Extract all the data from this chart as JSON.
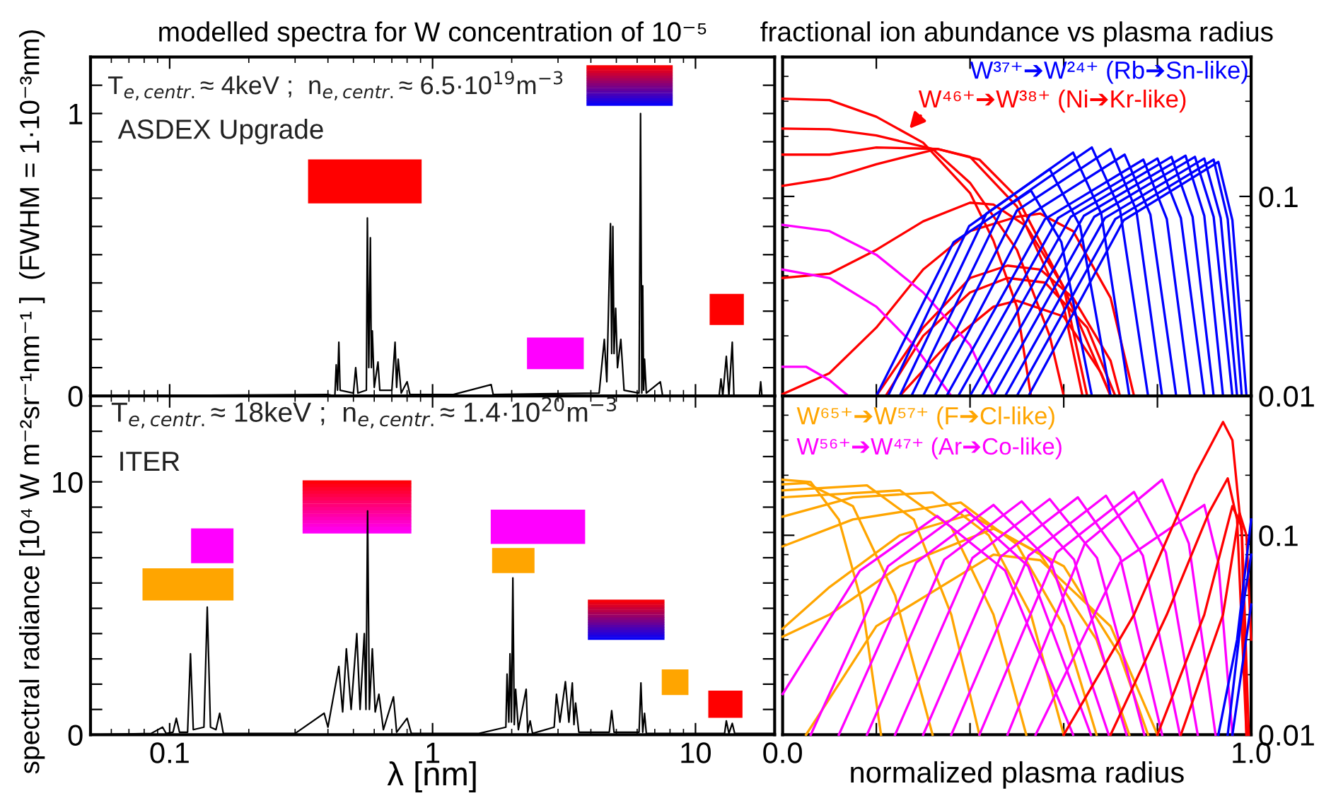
{
  "chart_data": [
    {
      "type": "line",
      "title": "modelled spectra for W concentration of 10⁻⁵",
      "log": "x",
      "tick_labels": "y",
      "xlim": [
        0.05,
        20
      ],
      "xticks": [
        0.1,
        1,
        10
      ],
      "ylim": [
        0,
        1.2
      ],
      "yticks": [
        0,
        {
          "value": 0.1,
          "label": null
        },
        {
          "value": 0.2,
          "label": null
        },
        {
          "value": 0.3,
          "label": null
        },
        {
          "value": 0.4,
          "label": null
        },
        {
          "value": 0.5,
          "label": null
        },
        {
          "value": 0.6,
          "label": null
        },
        {
          "value": 0.7,
          "label": null
        },
        {
          "value": 0.8,
          "label": null
        },
        {
          "value": 0.9,
          "label": null
        },
        1,
        {
          "value": 1.1,
          "label": null
        }
      ],
      "annotations": [
        "T$_{e,centr.}$≈ 4keV ;  n$_{e,centr.}$≈ 6.5·10$^{19}$m$^{−3}$",
        "ASDEX Upgrade"
      ],
      "series": [
        {
          "color": "#000000",
          "x": [
            0.05,
            0.4,
            0.425,
            0.43,
            0.435,
            0.44,
            0.445,
            0.5,
            0.51,
            0.52,
            0.56,
            0.565,
            0.572,
            0.58,
            0.585,
            0.59,
            0.6,
            0.62,
            0.63,
            0.7,
            0.72,
            0.73,
            0.74,
            0.76,
            0.8,
            0.82,
            1.2,
            1.67,
            1.7,
            4.3,
            4.5,
            4.6,
            4.75,
            4.8,
            4.85,
            4.9,
            4.97,
            5.05,
            5.2,
            5.35,
            6.1,
            6.18,
            6.25,
            6.3,
            6.35,
            6.4,
            6.5,
            7.35,
            7.5,
            12.3,
            12.5,
            12.7,
            13.1,
            13.4,
            13.8,
            14.0,
            17.5,
            17.7,
            17.9,
            20
          ],
          "values": [
            0,
            0.005,
            0,
            0.11,
            0.02,
            0.19,
            0.02,
            0.01,
            0.1,
            0.01,
            0.02,
            0.63,
            0.1,
            0.56,
            0.1,
            0.23,
            0.03,
            0.12,
            0.02,
            0.02,
            0.19,
            0.03,
            0.13,
            0.01,
            0.05,
            0.005,
            0.005,
            0.04,
            0.005,
            0.01,
            0.2,
            0.05,
            0.61,
            0.15,
            0.6,
            0.15,
            0.31,
            0.1,
            0.2,
            0.02,
            0.01,
            1.0,
            0.01,
            0.39,
            0.02,
            0.13,
            0.01,
            0.05,
            0,
            0,
            0.06,
            0,
            0.14,
            0,
            0.19,
            0,
            0,
            0.05,
            0,
            0
          ]
        }
      ]
    },
    {
      "type": "line",
      "title": "fractional ion abundance vs plasma radius",
      "log": "y",
      "tick_labels": "y",
      "xlim": [
        0,
        1
      ],
      "xticks": [
        {
          "value": 0,
          "label": null
        },
        {
          "value": 0.2,
          "label": null
        },
        {
          "value": 0.4,
          "label": null
        },
        {
          "value": 0.6,
          "label": null
        },
        {
          "value": 0.8,
          "label": null
        },
        {
          "value": 1,
          "label": null
        }
      ],
      "ylim": [
        0.01,
        0.5
      ],
      "yticks": [
        0.01,
        0.1
      ],
      "annotations": [
        "W⁴⁶⁺➔W³⁸⁺ (Ni➔Kr-like)",
        "W³⁷⁺➔W²⁴⁺ (Rb➔Sn-like)"
      ],
      "series": [
        {
          "color": "#ff0000",
          "x": [
            0,
            0.1,
            0.2,
            0.3,
            0.4,
            0.45,
            0.5,
            0.53
          ],
          "values": [
            0.309,
            0.304,
            0.251,
            0.186,
            0.104,
            0.06,
            0.028,
            0.01
          ]
        },
        {
          "color": "#ff0000",
          "x": [
            0,
            0.1,
            0.2,
            0.32,
            0.4,
            0.5,
            0.57,
            0.6
          ],
          "values": [
            0.219,
            0.217,
            0.202,
            0.173,
            0.117,
            0.054,
            0.02,
            0.01
          ]
        },
        {
          "color": "#ff0000",
          "x": [
            0,
            0.1,
            0.2,
            0.33,
            0.4,
            0.5,
            0.6,
            0.64
          ],
          "values": [
            0.162,
            0.162,
            0.176,
            0.173,
            0.158,
            0.089,
            0.028,
            0.01
          ]
        },
        {
          "color": "#ff0000",
          "x": [
            0,
            0.1,
            0.2,
            0.33,
            0.42,
            0.5,
            0.6,
            0.65
          ],
          "values": [
            0.113,
            0.123,
            0.145,
            0.173,
            0.153,
            0.099,
            0.035,
            0.01
          ]
        },
        {
          "color": "#ff0000",
          "x": [
            0,
            0.1,
            0.2,
            0.3,
            0.4,
            0.45,
            0.52,
            0.6,
            0.7
          ],
          "values": [
            0.039,
            0.041,
            0.054,
            0.075,
            0.093,
            0.091,
            0.071,
            0.035,
            0.01
          ]
        },
        {
          "color": "#ff0000",
          "x": [
            0,
            0.1,
            0.2,
            0.3,
            0.4,
            0.5,
            0.55,
            0.62,
            0.7,
            0.75
          ],
          "values": [
            0.0102,
            0.013,
            0.022,
            0.043,
            0.067,
            0.079,
            0.082,
            0.067,
            0.031,
            0.01
          ]
        },
        {
          "color": "#ff0000",
          "x": [
            0.2,
            0.3,
            0.4,
            0.48,
            0.55,
            0.62,
            0.7,
            0.72
          ],
          "values": [
            0.01,
            0.022,
            0.039,
            0.045,
            0.043,
            0.031,
            0.015,
            0.01
          ]
        },
        {
          "color": "#ff0000",
          "x": [
            0.22,
            0.3,
            0.4,
            0.48,
            0.56,
            0.65,
            0.71
          ],
          "values": [
            0.01,
            0.02,
            0.033,
            0.039,
            0.037,
            0.022,
            0.01
          ]
        },
        {
          "color": "#ff0000",
          "x": [
            0.25,
            0.35,
            0.45,
            0.5,
            0.6,
            0.68,
            0.7
          ],
          "values": [
            0.01,
            0.018,
            0.028,
            0.03,
            0.025,
            0.013,
            0.01
          ]
        },
        {
          "color": "#ff00ff",
          "x": [
            0,
            0.1,
            0.2,
            0.3,
            0.4,
            0.45
          ],
          "values": [
            0.072,
            0.067,
            0.051,
            0.033,
            0.018,
            0.01
          ]
        },
        {
          "color": "#ff00ff",
          "x": [
            0,
            0.1,
            0.2,
            0.28,
            0.36
          ],
          "values": [
            0.043,
            0.039,
            0.028,
            0.018,
            0.01
          ]
        },
        {
          "color": "#ff00ff",
          "x": [
            0,
            0.05,
            0.1,
            0.14
          ],
          "values": [
            0.014,
            0.014,
            0.012,
            0.01
          ]
        },
        {
          "color": "#0000ff",
          "x": [
            0.2,
            0.365,
            0.53,
            0.595,
            0.66
          ],
          "values": [
            0.01,
            0.059,
            0.107,
            0.059,
            0.01
          ]
        },
        {
          "color": "#0000ff",
          "x": [
            0.225,
            0.398,
            0.57,
            0.635,
            0.7
          ],
          "values": [
            0.01,
            0.071,
            0.137,
            0.071,
            0.01
          ]
        },
        {
          "color": "#0000ff",
          "x": [
            0.25,
            0.435,
            0.62,
            0.68,
            0.74
          ],
          "values": [
            0.01,
            0.082,
            0.166,
            0.082,
            0.01
          ]
        },
        {
          "color": "#0000ff",
          "x": [
            0.275,
            0.468,
            0.66,
            0.72,
            0.78
          ],
          "values": [
            0.01,
            0.086,
            0.176,
            0.086,
            0.01
          ]
        },
        {
          "color": "#0000ff",
          "x": [
            0.3,
            0.5,
            0.7,
            0.755,
            0.81
          ],
          "values": [
            0.01,
            0.085,
            0.173,
            0.085,
            0.01
          ]
        },
        {
          "color": "#0000ff",
          "x": [
            0.325,
            0.528,
            0.73,
            0.785,
            0.84
          ],
          "values": [
            0.01,
            0.081,
            0.162,
            0.081,
            0.01
          ]
        },
        {
          "color": "#0000ff",
          "x": [
            0.35,
            0.56,
            0.77,
            0.82,
            0.87
          ],
          "values": [
            0.01,
            0.077,
            0.153,
            0.077,
            0.01
          ]
        },
        {
          "color": "#0000ff",
          "x": [
            0.375,
            0.588,
            0.8,
            0.85,
            0.9
          ],
          "values": [
            0.01,
            0.078,
            0.155,
            0.078,
            0.01
          ]
        },
        {
          "color": "#0000ff",
          "x": [
            0.4,
            0.615,
            0.83,
            0.875,
            0.92
          ],
          "values": [
            0.01,
            0.079,
            0.158,
            0.079,
            0.01
          ]
        },
        {
          "color": "#0000ff",
          "x": [
            0.425,
            0.643,
            0.86,
            0.9,
            0.94
          ],
          "values": [
            0.01,
            0.08,
            0.16,
            0.08,
            0.01
          ]
        },
        {
          "color": "#0000ff",
          "x": [
            0.45,
            0.665,
            0.88,
            0.92,
            0.96
          ],
          "values": [
            0.01,
            0.079,
            0.158,
            0.079,
            0.01
          ]
        },
        {
          "color": "#0000ff",
          "x": [
            0.475,
            0.688,
            0.9,
            0.935,
            0.97
          ],
          "values": [
            0.01,
            0.078,
            0.155,
            0.078,
            0.01
          ]
        },
        {
          "color": "#0000ff",
          "x": [
            0.5,
            0.71,
            0.92,
            0.95,
            0.98
          ],
          "values": [
            0.01,
            0.077,
            0.153,
            0.077,
            0.01
          ]
        },
        {
          "color": "#0000ff",
          "x": [
            0.525,
            0.728,
            0.93,
            0.96,
            0.99
          ],
          "values": [
            0.01,
            0.076,
            0.149,
            0.076,
            0.01
          ]
        }
      ]
    },
    {
      "type": "line",
      "log": "x",
      "xlabel": "λ [nm]",
      "ylabel": "spectral radiance [10⁴ W m⁻²sr⁻¹nm⁻¹ ]  (FWHM = 1·10⁻³nm)",
      "xlim": [
        0.05,
        20
      ],
      "xticks": [
        0.1,
        1,
        10
      ],
      "ylim": [
        0,
        13.4
      ],
      "yticks": [
        0,
        {
          "value": 1,
          "label": null
        },
        {
          "value": 2,
          "label": null
        },
        {
          "value": 3,
          "label": null
        },
        {
          "value": 4,
          "label": null
        },
        {
          "value": 5,
          "label": null
        },
        {
          "value": 6,
          "label": null
        },
        {
          "value": 7,
          "label": null
        },
        {
          "value": 8,
          "label": null
        },
        {
          "value": 9,
          "label": null
        },
        10,
        {
          "value": 11,
          "label": null
        },
        {
          "value": 12,
          "label": null
        },
        {
          "value": 13,
          "label": null
        }
      ],
      "annotations": [
        "T$_{e,centr.}$≈ 18keV ;  n$_{e,centr.}$≈ 1.4·10$^{20}$m$^{−3}$",
        "ITER"
      ],
      "series": [
        {
          "color": "#000000",
          "x": [
            0.05,
            0.085,
            0.094,
            0.097,
            0.103,
            0.106,
            0.109,
            0.117,
            0.12,
            0.123,
            0.135,
            0.139,
            0.143,
            0.15,
            0.155,
            0.16,
            0.2,
            0.3,
            0.387,
            0.4,
            0.44,
            0.455,
            0.47,
            0.49,
            0.515,
            0.53,
            0.55,
            0.558,
            0.566,
            0.575,
            0.59,
            0.605,
            0.625,
            0.65,
            0.71,
            0.73,
            0.8,
            0.83,
            1.0,
            1.5,
            1.9,
            1.92,
            1.95,
            1.97,
            1.995,
            2.02,
            2.045,
            2.07,
            2.12,
            2.27,
            2.3,
            2.35,
            2.4,
            2.9,
            2.96,
            3.05,
            3.2,
            3.3,
            3.4,
            3.45,
            3.5,
            3.6,
            4.7,
            4.8,
            4.9,
            6.1,
            6.2,
            6.3,
            6.4,
            6.5,
            12.9,
            13.1,
            13.4,
            13.8,
            14.1,
            20
          ],
          "values": [
            0,
            0.05,
            0.3,
            0.05,
            0.1,
            0.65,
            0.1,
            0.1,
            3.2,
            0.2,
            0.3,
            5.05,
            0.3,
            0.2,
            0.85,
            0.05,
            0.05,
            0.05,
            0.85,
            0.3,
            2.7,
            0.9,
            3.4,
            1.0,
            4.0,
            1.0,
            4.0,
            1.0,
            8.85,
            1.0,
            3.4,
            0.9,
            1.6,
            0.2,
            1.5,
            0.1,
            0.65,
            0.05,
            0.05,
            0.05,
            0.3,
            2.4,
            0.5,
            3.2,
            0.5,
            6.2,
            0.4,
            1.8,
            0.2,
            1.8,
            0.1,
            0.55,
            0.05,
            0.3,
            1.6,
            0.5,
            2.1,
            0.5,
            2.05,
            0.4,
            1.25,
            0.1,
            0.1,
            0.95,
            0.1,
            0.1,
            2.05,
            0.1,
            0.85,
            0.05,
            0.05,
            0.55,
            0.05,
            0.45,
            0.05,
            0.05
          ]
        }
      ]
    },
    {
      "type": "line",
      "log": "y",
      "xlabel": "normalized plasma radius",
      "xlim": [
        0,
        1
      ],
      "xticks": [
        {
          "value": 0,
          "label": "0.0"
        },
        {
          "value": 0.2,
          "label": null
        },
        {
          "value": 0.4,
          "label": null
        },
        {
          "value": 0.6,
          "label": null
        },
        {
          "value": 0.8,
          "label": null
        },
        {
          "value": 1,
          "label": "1.0"
        }
      ],
      "ylim": [
        0.01,
        0.5
      ],
      "yticks": [
        0.01,
        0.1
      ],
      "annotations": [
        "W⁶⁵⁺➔W⁵⁷⁺ (F➔Cl-like)",
        "W⁵⁶⁺➔W⁴⁷⁺ (Ar➔Co-like)"
      ],
      "series": [
        {
          "color": "#ffa500",
          "x": [
            0,
            0.06,
            0.12,
            0.17,
            0.21
          ],
          "values": [
            0.19,
            0.185,
            0.12,
            0.045,
            0.01
          ]
        },
        {
          "color": "#ffa500",
          "x": [
            0,
            0.05,
            0.15,
            0.24,
            0.32
          ],
          "values": [
            0.18,
            0.183,
            0.14,
            0.05,
            0.01
          ]
        },
        {
          "color": "#ffa500",
          "x": [
            0,
            0.18,
            0.28,
            0.36,
            0.42
          ],
          "values": [
            0.168,
            0.178,
            0.12,
            0.04,
            0.01
          ]
        },
        {
          "color": "#ffa500",
          "x": [
            0,
            0.25,
            0.36,
            0.45,
            0.52
          ],
          "values": [
            0.155,
            0.168,
            0.11,
            0.04,
            0.01
          ]
        },
        {
          "color": "#ffa500",
          "x": [
            0,
            0.15,
            0.32,
            0.44,
            0.53,
            0.6
          ],
          "values": [
            0.124,
            0.155,
            0.164,
            0.1,
            0.04,
            0.01
          ]
        },
        {
          "color": "#ffa500",
          "x": [
            0,
            0.15,
            0.38,
            0.5,
            0.6,
            0.67
          ],
          "values": [
            0.088,
            0.12,
            0.146,
            0.09,
            0.035,
            0.01
          ]
        },
        {
          "color": "#ffa500",
          "x": [
            0,
            0.1,
            0.25,
            0.4,
            0.55,
            0.67,
            0.74
          ],
          "values": [
            0.034,
            0.055,
            0.1,
            0.127,
            0.08,
            0.03,
            0.01
          ]
        },
        {
          "color": "#ffa500",
          "x": [
            0,
            0.1,
            0.25,
            0.45,
            0.6,
            0.72,
            0.78
          ],
          "values": [
            0.031,
            0.04,
            0.07,
            0.108,
            0.07,
            0.025,
            0.01
          ]
        },
        {
          "color": "#ffa500",
          "x": [
            0.05,
            0.2,
            0.45,
            0.55,
            0.7,
            0.8
          ],
          "values": [
            0.01,
            0.035,
            0.08,
            0.075,
            0.035,
            0.01
          ]
        },
        {
          "color": "#ff00ff",
          "x": [
            0,
            0.165,
            0.33,
            0.475,
            0.62
          ],
          "values": [
            0.016,
            0.0665,
            0.125,
            0.0665,
            0.01
          ]
        },
        {
          "color": "#ff00ff",
          "x": [
            0.06,
            0.225,
            0.39,
            0.524,
            0.658
          ],
          "values": [
            0.01,
            0.07,
            0.135,
            0.07,
            0.01
          ]
        },
        {
          "color": "#ff00ff",
          "x": [
            0.12,
            0.285,
            0.45,
            0.573,
            0.696
          ],
          "values": [
            0.01,
            0.073,
            0.142,
            0.073,
            0.01
          ]
        },
        {
          "color": "#ff00ff",
          "x": [
            0.18,
            0.345,
            0.51,
            0.622,
            0.734
          ],
          "values": [
            0.01,
            0.0755,
            0.148,
            0.0755,
            0.01
          ]
        },
        {
          "color": "#ff00ff",
          "x": [
            0.24,
            0.405,
            0.57,
            0.671,
            0.772
          ],
          "values": [
            0.01,
            0.077,
            0.152,
            0.077,
            0.01
          ]
        },
        {
          "color": "#ff00ff",
          "x": [
            0.3,
            0.465,
            0.63,
            0.72,
            0.81
          ],
          "values": [
            0.01,
            0.078,
            0.155,
            0.078,
            0.01
          ]
        },
        {
          "color": "#ff00ff",
          "x": [
            0.36,
            0.525,
            0.69,
            0.769,
            0.848
          ],
          "values": [
            0.01,
            0.079,
            0.158,
            0.079,
            0.01
          ]
        },
        {
          "color": "#ff00ff",
          "x": [
            0.42,
            0.585,
            0.75,
            0.818,
            0.886
          ],
          "values": [
            0.01,
            0.082,
            0.165,
            0.082,
            0.01
          ]
        },
        {
          "color": "#ff00ff",
          "x": [
            0.48,
            0.645,
            0.81,
            0.867,
            0.924
          ],
          "values": [
            0.01,
            0.091,
            0.19,
            0.091,
            0.01
          ]
        },
        {
          "color": "#ff00ff",
          "x": [
            0.54,
            0.72,
            0.9,
            0.93,
            0.96
          ],
          "values": [
            0.01,
            0.073,
            0.142,
            0.073,
            0.01
          ]
        },
        {
          "color": "#ff0000",
          "x": [
            0.6,
            0.75,
            0.88,
            0.94,
            0.96,
            0.98,
            0.99
          ],
          "values": [
            0.01,
            0.04,
            0.2,
            0.37,
            0.3,
            0.1,
            0.01
          ]
        },
        {
          "color": "#ff0000",
          "x": [
            0.7,
            0.82,
            0.91,
            0.95,
            0.97,
            0.99
          ],
          "values": [
            0.01,
            0.04,
            0.13,
            0.193,
            0.12,
            0.01
          ]
        },
        {
          "color": "#ff0000",
          "x": [
            0.8,
            0.9,
            0.96,
            0.98,
            0.995
          ],
          "values": [
            0.01,
            0.04,
            0.14,
            0.11,
            0.01
          ]
        },
        {
          "color": "#ff0000",
          "x": [
            0.85,
            0.94,
            0.975,
            0.99,
            1.0
          ],
          "values": [
            0.01,
            0.04,
            0.13,
            0.1,
            0.03
          ]
        },
        {
          "color": "#0000ff",
          "x": [
            0.93,
            0.97,
            1.0
          ],
          "values": [
            0.01,
            0.03,
            0.12
          ]
        },
        {
          "color": "#0000ff",
          "x": [
            0.95,
            0.98,
            1.0
          ],
          "values": [
            0.01,
            0.04,
            0.08
          ]
        },
        {
          "color": "#0000ff",
          "x": [
            0.96,
            1.0
          ],
          "values": [
            0.01,
            0.045
          ]
        }
      ]
    }
  ]
}
